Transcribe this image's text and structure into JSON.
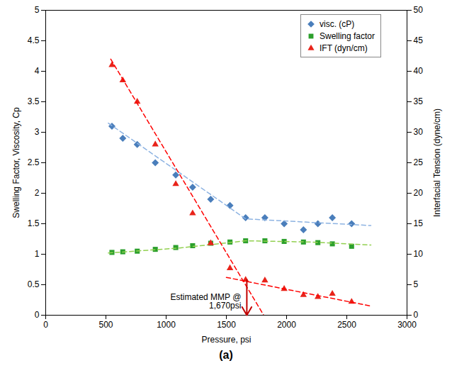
{
  "chart_data": {
    "type": "scatter",
    "caption": "(a)",
    "x_label": "Pressure, psi",
    "y_label": "Swelling Factor, Viscosity, Cp",
    "y2_label": "Interfacial Tension (dyne/cm)",
    "xlim": [
      0,
      3000
    ],
    "xticks": [
      0,
      500,
      1000,
      1500,
      2000,
      2500,
      3000
    ],
    "ylim": [
      0,
      5
    ],
    "yticks": [
      0,
      0.5,
      1,
      1.5,
      2,
      2.5,
      3,
      3.5,
      4,
      4.5,
      5
    ],
    "y2lim": [
      0,
      50
    ],
    "y2ticks": [
      0,
      5,
      10,
      15,
      20,
      25,
      30,
      35,
      40,
      45,
      50
    ],
    "grid": false,
    "legend": "upper right",
    "series": [
      {
        "name": "visc. (cP)",
        "type": "scatter",
        "marker": "diamond",
        "color": "#4a7ebb",
        "x": [
          550,
          640,
          760,
          910,
          1080,
          1220,
          1370,
          1530,
          1660,
          1820,
          1980,
          2140,
          2260,
          2380,
          2540
        ],
        "values": [
          3.1,
          2.9,
          2.8,
          2.5,
          2.3,
          2.1,
          1.9,
          1.8,
          1.6,
          1.6,
          1.5,
          1.4,
          1.5,
          1.6,
          1.5
        ]
      },
      {
        "name": "Swelling factor",
        "type": "scatter",
        "marker": "square",
        "color": "#2ca02c",
        "x": [
          550,
          640,
          760,
          910,
          1080,
          1220,
          1370,
          1530,
          1660,
          1820,
          1980,
          2140,
          2260,
          2380,
          2540
        ],
        "values": [
          1.03,
          1.04,
          1.05,
          1.08,
          1.11,
          1.14,
          1.18,
          1.2,
          1.22,
          1.22,
          1.21,
          1.2,
          1.19,
          1.17,
          1.13
        ]
      },
      {
        "name": "IFT (dyn/cm)",
        "type": "scatter",
        "marker": "triangle",
        "color": "#e8231a",
        "axis": "y2",
        "x": [
          550,
          640,
          760,
          910,
          1080,
          1220,
          1370,
          1530,
          1660,
          1820,
          1980,
          2140,
          2260,
          2380,
          2540
        ],
        "values": [
          41,
          38.5,
          35,
          28,
          21.5,
          16.7,
          11.8,
          7.7,
          5.8,
          5.7,
          4.3,
          3.3,
          3.0,
          3.5,
          2.2
        ]
      },
      {
        "type": "line",
        "line_style": "dashed",
        "color": "#8db3e2",
        "x": [
          520,
          1660,
          2700
        ],
        "values": [
          3.15,
          1.58,
          1.47
        ]
      },
      {
        "type": "line",
        "line_style": "dashed",
        "color": "#92d050",
        "x": [
          520,
          1100,
          1660,
          2200,
          2700
        ],
        "values": [
          1.02,
          1.1,
          1.22,
          1.2,
          1.15
        ]
      },
      {
        "type": "line",
        "line_style": "dashed",
        "color": "#ff0000",
        "axis": "y2",
        "x": [
          540,
          1810
        ],
        "values": [
          42,
          0
        ]
      },
      {
        "type": "line",
        "line_style": "dashed",
        "color": "#ff0000",
        "axis": "y2",
        "x": [
          1500,
          2700
        ],
        "values": [
          6.2,
          1.5
        ]
      }
    ],
    "annotations": [
      {
        "text": "Estimated MMP @\n1,670psi",
        "x": 1670,
        "y2": 5.8,
        "color": "#c00000"
      }
    ]
  }
}
